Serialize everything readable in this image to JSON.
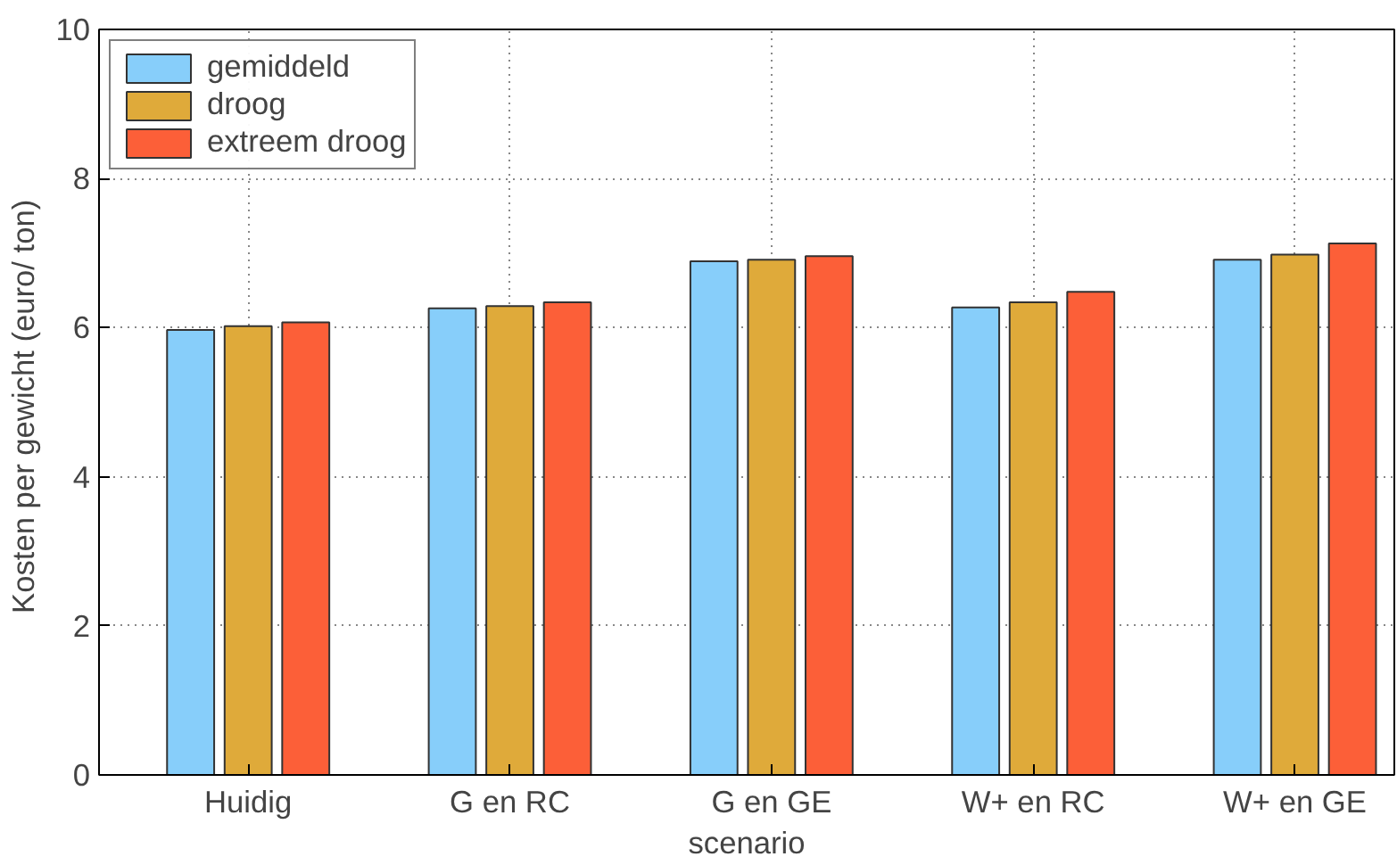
{
  "chart_data": {
    "type": "bar",
    "xlabel": "scenario",
    "ylabel": "Kosten per gewicht  (euro/ ton)",
    "categories": [
      "Huidig",
      "G en RC",
      "G en GE",
      "W+ en RC",
      "W+ en GE"
    ],
    "series": [
      {
        "name": "gemiddeld",
        "color": "#87cefa",
        "values": [
          5.97,
          6.26,
          6.89,
          6.27,
          6.91
        ]
      },
      {
        "name": "droog",
        "color": "#dfaa3a",
        "values": [
          6.02,
          6.29,
          6.91,
          6.34,
          6.98
        ]
      },
      {
        "name": "extreem droog",
        "color": "#fc5f38",
        "values": [
          6.07,
          6.34,
          6.96,
          6.48,
          7.13
        ]
      }
    ],
    "ylim": [
      0,
      10
    ],
    "yticks": [
      0,
      2,
      4,
      6,
      8,
      10
    ],
    "grid": true,
    "legend": "top left"
  }
}
